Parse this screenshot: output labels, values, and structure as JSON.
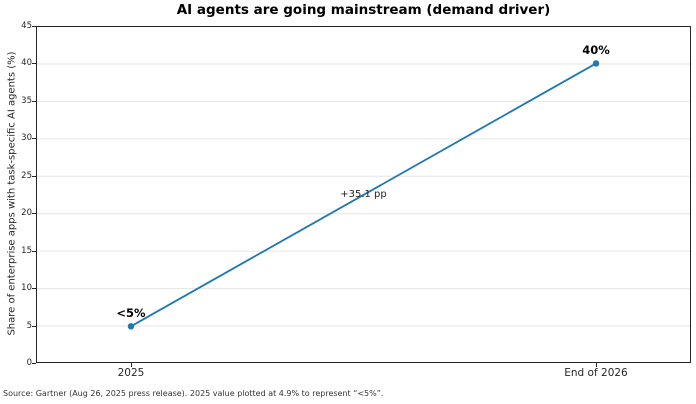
{
  "source_note": "Source: Gartner (Aug 26, 2025 press release). 2025 value plotted at 4.9% to represent “<5%”.",
  "chart_data": {
    "type": "line",
    "title": "AI agents are going mainstream (demand driver)",
    "xlabel": "",
    "ylabel": "Share of enterprise apps with task-specific AI agents (%)",
    "categories": [
      "2025",
      "End of 2026"
    ],
    "values": [
      4.9,
      40
    ],
    "point_labels": [
      "<5%",
      "40%"
    ],
    "annotation": "+35.1 pp",
    "ylim": [
      0,
      45
    ],
    "yticks": [
      0,
      5,
      10,
      15,
      20,
      25,
      30,
      35,
      40,
      45
    ],
    "grid": "horizontal",
    "legend": "none",
    "line_color": "#1f77b4",
    "marker_color": "#1f77b4",
    "grid_color": "#e6e6e6",
    "spine_color": "#262626"
  }
}
